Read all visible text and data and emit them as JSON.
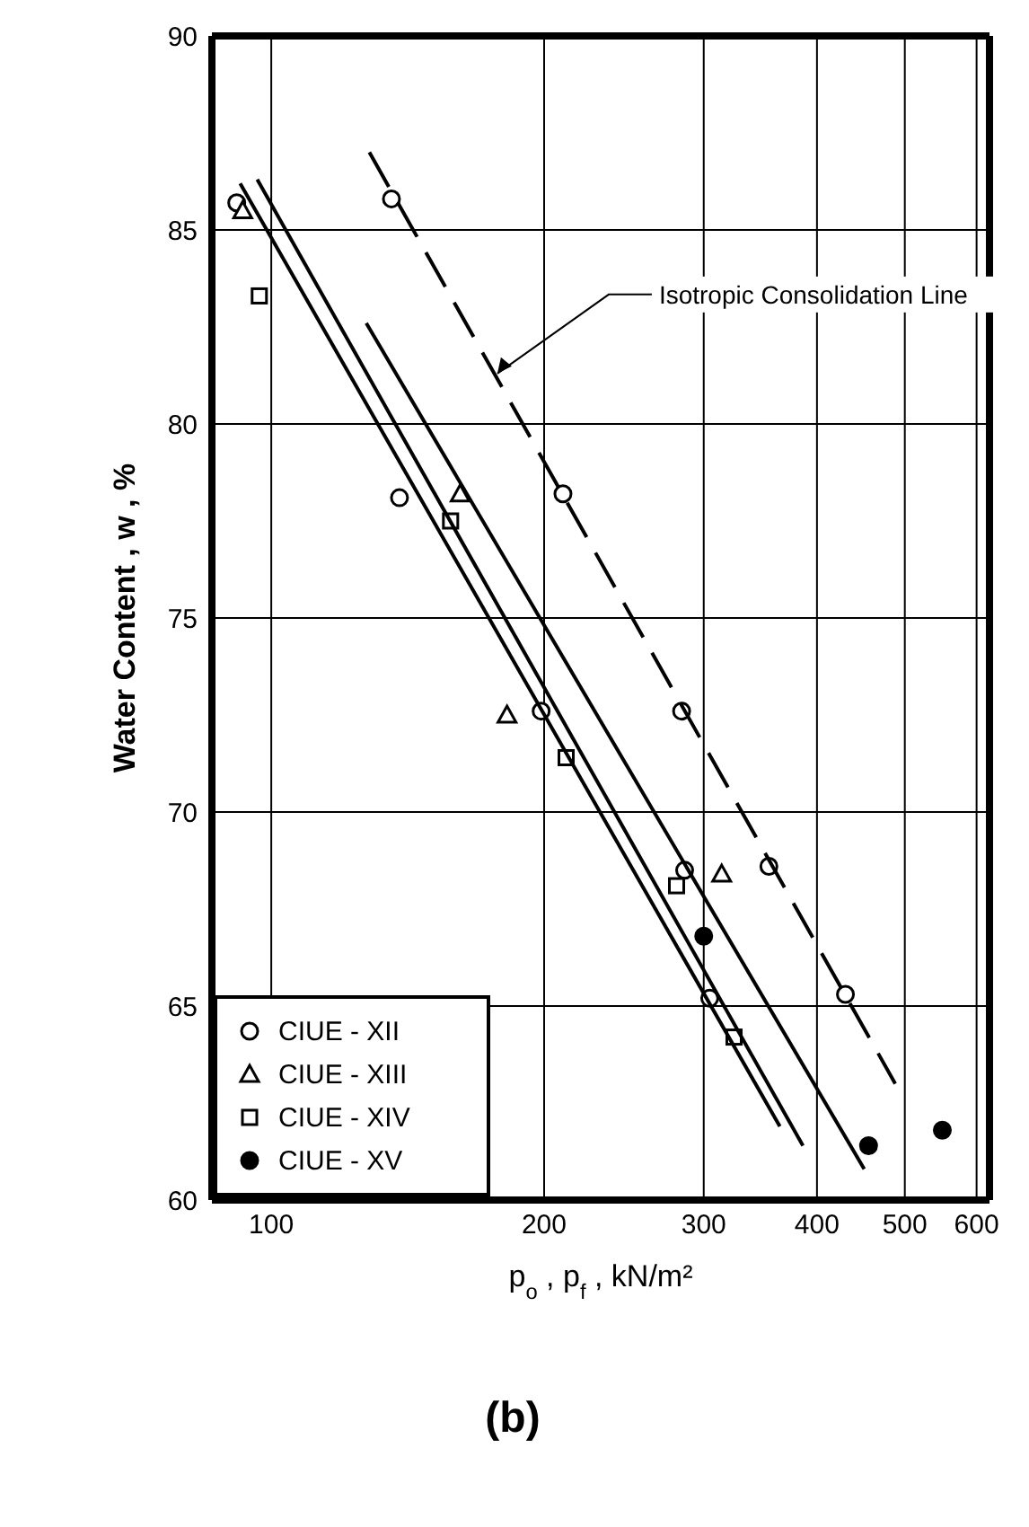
{
  "chart_data": {
    "type": "scatter",
    "xlabel": "p$_{o}$ , p$_{f}$ , kN/m²",
    "ylabel": "Water Content , w , %",
    "log": "x",
    "xlim": [
      86,
      620
    ],
    "xticks": [
      100,
      200,
      300,
      400,
      500,
      600
    ],
    "ylim": [
      60,
      90
    ],
    "yticks": [
      60,
      65,
      70,
      75,
      80,
      85,
      90
    ],
    "grid": true,
    "legend": "bottom left",
    "annotations": [
      {
        "text": "Isotropic Consolidation Line",
        "x": 177.6,
        "y": 81.3
      },
      "(b)"
    ],
    "series": [
      {
        "name": "CIUE - XII",
        "color": "#000000",
        "marker": "circle",
        "x": [
          91.6,
          135.7,
          138.5,
          209.8,
          198.5,
          283.6,
          285.8,
          304.6,
          354,
          430
        ],
        "values": [
          85.7,
          85.8,
          78.1,
          78.2,
          72.6,
          72.6,
          68.5,
          65.2,
          68.6,
          65.3
        ]
      },
      {
        "name": "CIUE - XIII",
        "color": "#000000",
        "marker": "triangle",
        "x": [
          93,
          161.6,
          182,
          314
        ],
        "values": [
          85.5,
          78.2,
          72.5,
          68.4
        ]
      },
      {
        "name": "CIUE - XIV",
        "color": "#000000",
        "marker": "square",
        "x": [
          97,
          157.7,
          211.5,
          280,
          324
        ],
        "values": [
          83.3,
          77.5,
          71.4,
          68.1,
          64.2
        ]
      },
      {
        "name": "CIUE - XV",
        "color": "#000000",
        "marker": "filled circle",
        "x": [
          300,
          456,
          550
        ],
        "values": [
          66.8,
          61.4,
          61.8
        ]
      },
      {
        "type": "line",
        "color": "#000000",
        "line_style": "solid",
        "x": [
          92.4,
          364
        ],
        "values": [
          86.2,
          61.9
        ]
      },
      {
        "type": "line",
        "color": "#000000",
        "line_style": "solid",
        "x": [
          96.5,
          386
        ],
        "values": [
          86.3,
          61.4
        ]
      },
      {
        "type": "line",
        "color": "#000000",
        "line_style": "solid",
        "x": [
          127.3,
          451
        ],
        "values": [
          82.6,
          60.8
        ]
      },
      {
        "type": "line",
        "color": "#000000",
        "line_style": "dashed",
        "x": [
          128.3,
          488
        ],
        "values": [
          87.0,
          63.0
        ]
      }
    ]
  }
}
